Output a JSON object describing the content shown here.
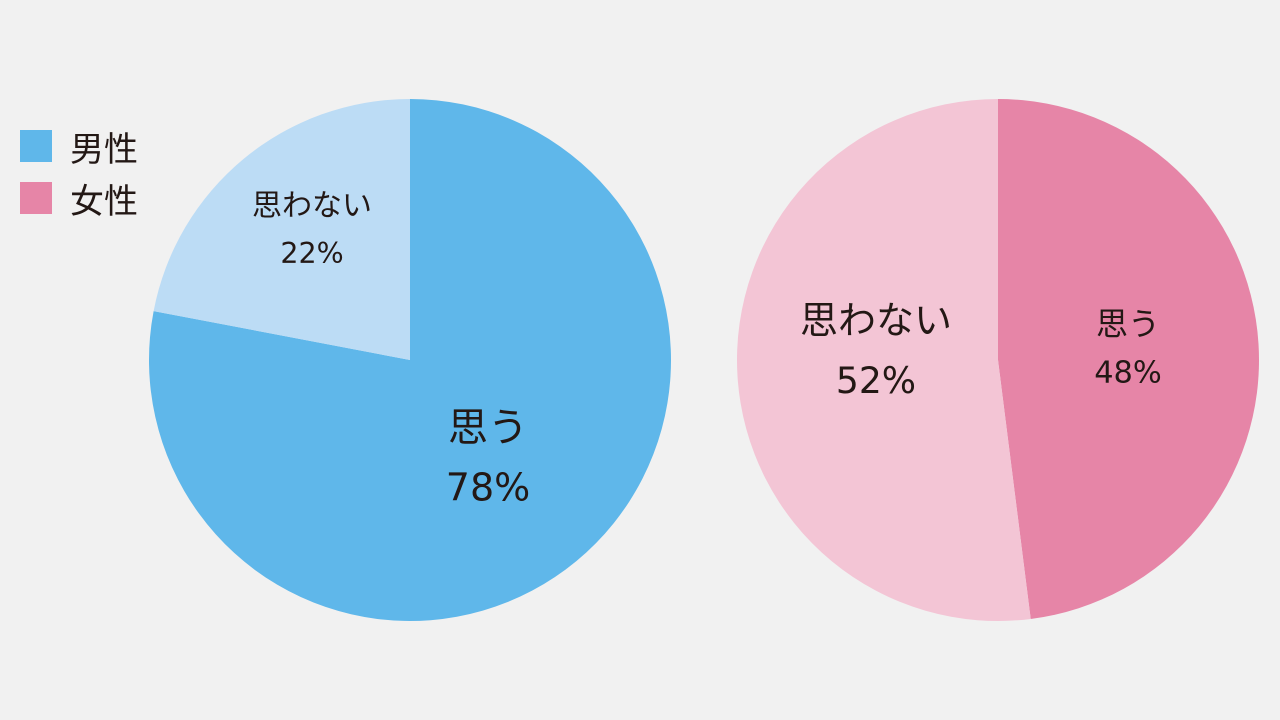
{
  "legend": [
    {
      "label": "男性",
      "color": "#5fb7ea"
    },
    {
      "label": "女性",
      "color": "#e685a7"
    }
  ],
  "chart_data": [
    {
      "type": "pie",
      "series_name": "男性",
      "slices": [
        {
          "label": "思う",
          "value": 78,
          "value_label": "78%",
          "color": "#5fb7ea"
        },
        {
          "label": "思わない",
          "value": 22,
          "value_label": "22%",
          "color": "#bcdcf5"
        }
      ]
    },
    {
      "type": "pie",
      "series_name": "女性",
      "slices": [
        {
          "label": "思う",
          "value": 48,
          "value_label": "48%",
          "color": "#e685a7"
        },
        {
          "label": "思わない",
          "value": 52,
          "value_label": "52%",
          "color": "#f3c5d5"
        }
      ]
    }
  ]
}
